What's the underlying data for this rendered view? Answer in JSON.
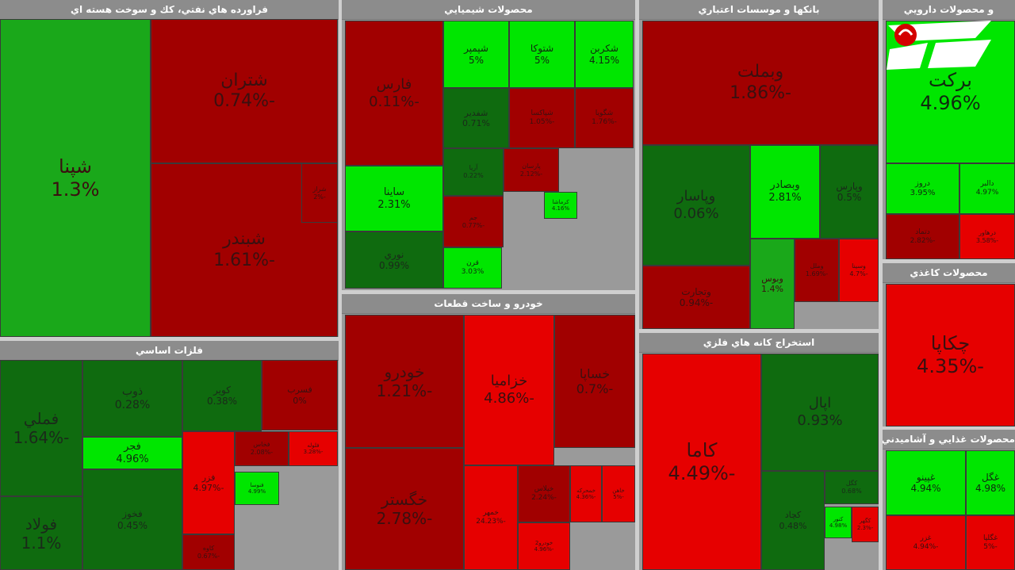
{
  "colors": {
    "bright_green": "#00e600",
    "green": "#1aa81a",
    "dark_green": "#0f6b0f",
    "dark_red": "#a10000",
    "red": "#e60000",
    "bright_red": "#ff1a1a"
  },
  "sectors": [
    {
      "title": "فراورده هاي نفتي، كك و سوخت هسته اي",
      "tiles": [
        {
          "name": "شپنا",
          "pct": "1.3%"
        },
        {
          "name": "شتران",
          "pct": "-0.74%"
        },
        {
          "name": "شبندر",
          "pct": "-1.61%"
        },
        {
          "name": "شراز",
          "pct": "-2%"
        }
      ]
    },
    {
      "title": "محصولات شيميايي",
      "tiles": [
        {
          "name": "فارس",
          "pct": "-0.11%"
        },
        {
          "name": "شپمپر",
          "pct": "5%"
        },
        {
          "name": "شتوكا",
          "pct": "5%"
        },
        {
          "name": "شكربن",
          "pct": "4.15%"
        },
        {
          "name": "شفدير",
          "pct": "0.71%"
        },
        {
          "name": "شپاكسا",
          "pct": "-1.05%"
        },
        {
          "name": "شگويا",
          "pct": "-1.76%"
        },
        {
          "name": "ساينا",
          "pct": "2.31%"
        },
        {
          "name": "نوري",
          "pct": "0.99%"
        },
        {
          "name": "قرن",
          "pct": "3.03%"
        },
        {
          "name": "آريا",
          "pct": "0.22%"
        },
        {
          "name": "پارسان",
          "pct": "-2.12%"
        },
        {
          "name": "كرماشا",
          "pct": "4.16%"
        },
        {
          "name": "جم",
          "pct": "-0.77%"
        }
      ]
    },
    {
      "title": "بانكها و موسسات اعتباري",
      "tiles": [
        {
          "name": "وبملت",
          "pct": "-1.86%"
        },
        {
          "name": "وپاسار",
          "pct": "0.06%"
        },
        {
          "name": "وبصادر",
          "pct": "2.81%"
        },
        {
          "name": "وپارس",
          "pct": "0.5%"
        },
        {
          "name": "وتجارت",
          "pct": "-0.94%"
        },
        {
          "name": "وبوس",
          "pct": "1.4%"
        },
        {
          "name": "وسينا",
          "pct": "-4.7%"
        },
        {
          "name": "وملل",
          "pct": "-1.69%"
        }
      ]
    },
    {
      "title": "و محصولات دارويي",
      "tiles": [
        {
          "name": "بركت",
          "pct": "4.96%"
        },
        {
          "name": "دروز",
          "pct": "3.95%"
        },
        {
          "name": "دالبر",
          "pct": "4.97%"
        },
        {
          "name": "دتماد",
          "pct": "-2.82%"
        },
        {
          "name": "درهاور",
          "pct": "-3.58%"
        }
      ]
    },
    {
      "title": "محصولات كاغذي",
      "tiles": [
        {
          "name": "چكاپا",
          "pct": "-4.35%"
        }
      ]
    },
    {
      "title": "فلزات اساسي",
      "tiles": [
        {
          "name": "فملي",
          "pct": "-1.64%"
        },
        {
          "name": "فولاد",
          "pct": "1.1%"
        },
        {
          "name": "ذوب",
          "pct": "0.28%"
        },
        {
          "name": "كوير",
          "pct": "0.38%"
        },
        {
          "name": "فخوز",
          "pct": "0.45%"
        },
        {
          "name": "فجر",
          "pct": "4.96%"
        },
        {
          "name": "فسرب",
          "pct": "0%"
        },
        {
          "name": "فزر",
          "pct": "-4.97%"
        },
        {
          "name": "فخاس",
          "pct": "-2.08%"
        },
        {
          "name": "فنوسا",
          "pct": "4.99%"
        },
        {
          "name": "فلوله",
          "pct": "-3.28%"
        },
        {
          "name": "كاوه",
          "pct": "-0.67%"
        }
      ]
    },
    {
      "title": "خودرو و ساخت قطعات",
      "tiles": [
        {
          "name": "خودرو",
          "pct": "-1.21%"
        },
        {
          "name": "خزاميا",
          "pct": "-4.86%"
        },
        {
          "name": "خساپا",
          "pct": "-0.7%"
        },
        {
          "name": "خگستر",
          "pct": "-2.78%"
        },
        {
          "name": "خمهر",
          "pct": "-24.23%"
        },
        {
          "name": "خپلاس",
          "pct": "-2.24%"
        },
        {
          "name": "خمحركه",
          "pct": "-4.36%"
        },
        {
          "name": "خاهن",
          "pct": "-5%"
        },
        {
          "name": "خودرو2",
          "pct": "-4.96%"
        }
      ]
    },
    {
      "title": "استخراج كانه هاي فلزي",
      "tiles": [
        {
          "name": "كاما",
          "pct": "-4.49%"
        },
        {
          "name": "اپال",
          "pct": "0.93%"
        },
        {
          "name": "كچاد",
          "pct": "0.48%"
        },
        {
          "name": "كگل",
          "pct": "0.68%"
        },
        {
          "name": "كنور",
          "pct": "4.98%"
        },
        {
          "name": "كگهر",
          "pct": "-2.3%"
        }
      ]
    },
    {
      "title": "محصولات غذايي و آشاميدني به جز",
      "tiles": [
        {
          "name": "غپينو",
          "pct": "4.94%"
        },
        {
          "name": "غگل",
          "pct": "4.98%"
        },
        {
          "name": "غزر",
          "pct": "-4.94%"
        },
        {
          "name": "غگلپا",
          "pct": "-5%"
        }
      ]
    }
  ]
}
